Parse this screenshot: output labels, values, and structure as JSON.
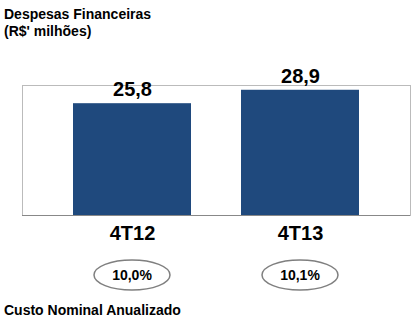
{
  "chart_data": {
    "type": "bar",
    "title": "Despesas Financeiras",
    "subtitle": "(R$' milhões)",
    "categories": [
      "4T12",
      "4T13"
    ],
    "values": [
      25.8,
      28.9
    ],
    "value_labels": [
      "25,8",
      "28,9"
    ],
    "data_labels": true,
    "color": "#1f497d",
    "ylim": [
      0,
      30
    ],
    "yticks": [
      0,
      30
    ],
    "tick_labels": "x",
    "grid": false,
    "annotation": "Custo Nominal Anualizado",
    "cost_values": [
      10.0,
      10.1
    ],
    "cost_labels": [
      "10,0%",
      "10,1%"
    ]
  }
}
